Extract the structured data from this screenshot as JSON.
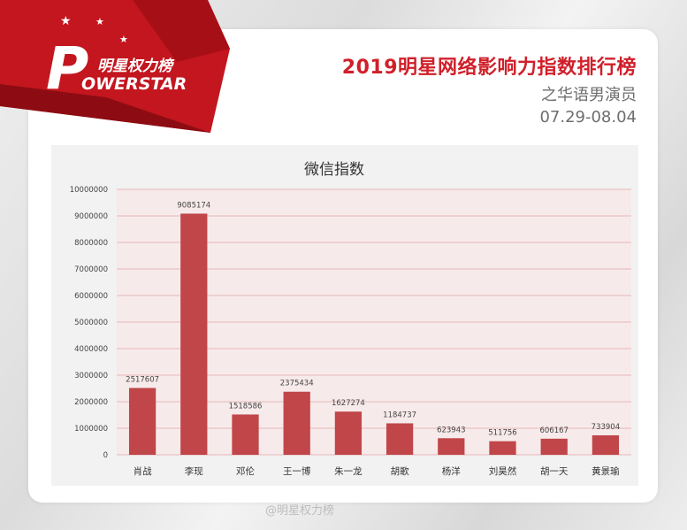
{
  "header": {
    "logo_text_cn": "明星权力榜",
    "logo_text_en": "OWERSTAR",
    "logo_mark": "P",
    "title": "2019明星网络影响力指数排行榜",
    "subtitle": "之华语男演员",
    "date_range": "07.29-08.04"
  },
  "colors": {
    "accent": "#d0202a",
    "bar": "#c0464a",
    "grid": "#e6b8ba"
  },
  "chart_data": {
    "type": "bar",
    "title": "微信指数",
    "xlabel": "",
    "ylabel": "",
    "ylim": [
      0,
      10000000
    ],
    "yticks": [
      0,
      1000000,
      2000000,
      3000000,
      4000000,
      5000000,
      6000000,
      7000000,
      8000000,
      9000000,
      10000000
    ],
    "ytick_labels": [
      "0",
      "1000000",
      "2000000",
      "3000000",
      "4000000",
      "5000000",
      "6000000",
      "7000000",
      "8000000",
      "9000000",
      "10000000"
    ],
    "categories": [
      "肖战",
      "李现",
      "邓伦",
      "王一博",
      "朱一龙",
      "胡歌",
      "杨洋",
      "刘昊然",
      "胡一天",
      "黄景瑜"
    ],
    "values": [
      2517607,
      9085174,
      1518586,
      2375434,
      1627274,
      1184737,
      623943,
      511756,
      606167,
      733904
    ],
    "value_labels": [
      "2517607",
      "9085174",
      "1518586",
      "2375434",
      "1627274",
      "1184737",
      "623943",
      "511756",
      "606167",
      "733904"
    ],
    "grid": true
  },
  "watermark": "@明星权力榜"
}
